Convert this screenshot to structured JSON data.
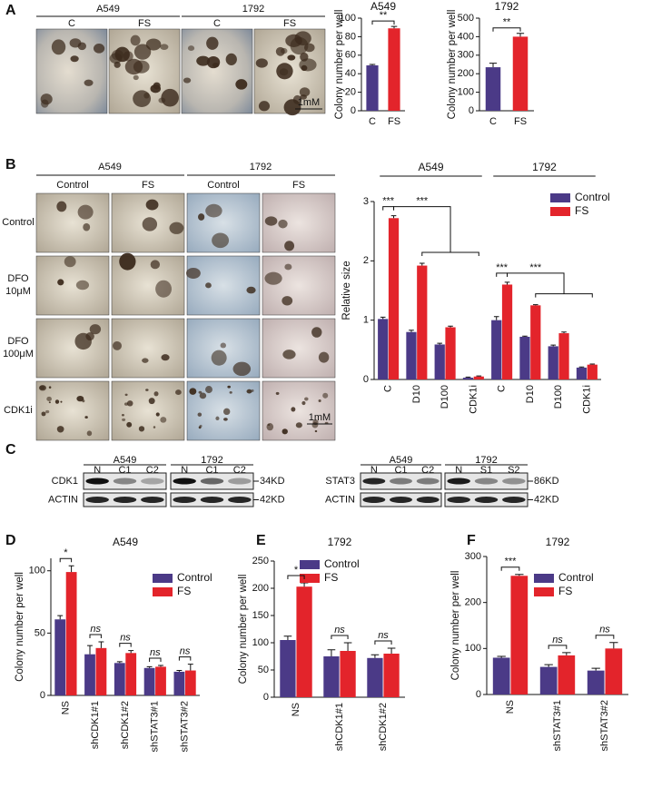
{
  "figure": {
    "panel_labels": [
      "A",
      "B",
      "C",
      "D",
      "E",
      "F"
    ],
    "a_images": {
      "groups": [
        "A549",
        "1792"
      ],
      "columns": [
        "C",
        "FS",
        "C",
        "FS"
      ],
      "scale": "1mM"
    },
    "b_images": {
      "groups": [
        "A549",
        "1792"
      ],
      "columns": [
        "Control",
        "FS",
        "Control",
        "FS"
      ],
      "rows": [
        [
          "Control"
        ],
        [
          "DFO",
          "10μM"
        ],
        [
          "DFO",
          "100μM"
        ],
        [
          "CDK1i"
        ]
      ],
      "scale": "1mM"
    },
    "c_blots": [
      {
        "groups": [
          "A549",
          "1792"
        ],
        "lanes": [
          [
            "N",
            "C1",
            "C2"
          ],
          [
            "N",
            "C1",
            "C2"
          ]
        ],
        "rows": [
          "CDK1",
          "ACTIN"
        ],
        "sizes": [
          "34KD",
          "42KD"
        ]
      },
      {
        "groups": [
          "A549",
          "1792"
        ],
        "lanes": [
          [
            "N",
            "C1",
            "C2"
          ],
          [
            "N",
            "S1",
            "S2"
          ]
        ],
        "rows": [
          "STAT3",
          "ACTIN"
        ],
        "sizes": [
          "86KD",
          "42KD"
        ]
      }
    ]
  },
  "chart_data": [
    {
      "type": "bar",
      "title": "A549",
      "ylabel": "Colony number per well",
      "categories": [
        "C",
        "FS"
      ],
      "values": [
        49,
        89
      ],
      "errors": [
        1,
        2
      ],
      "colors": [
        "#4b3a87",
        "#e3242b"
      ],
      "ylim": [
        0,
        100
      ],
      "yticks": [
        0,
        20,
        40,
        60,
        80,
        100
      ],
      "annotations": [
        "**"
      ]
    },
    {
      "type": "bar",
      "title": "1792",
      "ylabel": "Colony number per well",
      "categories": [
        "C",
        "FS"
      ],
      "values": [
        235,
        400
      ],
      "errors": [
        22,
        18
      ],
      "colors": [
        "#4b3a87",
        "#e3242b"
      ],
      "ylim": [
        0,
        500
      ],
      "yticks": [
        0,
        100,
        200,
        300,
        400,
        500
      ],
      "annotations": [
        "**"
      ]
    },
    {
      "type": "bar",
      "ylabel": "Relative size",
      "groups": [
        "A549",
        "1792"
      ],
      "categories": [
        "C",
        "D10",
        "D100",
        "CDK1i",
        "C",
        "D10",
        "D100",
        "CDK1i"
      ],
      "series": [
        {
          "name": "Control",
          "color": "#4b3a87",
          "values": [
            1.02,
            0.8,
            0.59,
            0.03,
            1.0,
            0.72,
            0.56,
            0.2
          ],
          "errors": [
            0.03,
            0.03,
            0.02,
            0.01,
            0.06,
            0.01,
            0.02,
            0.01
          ]
        },
        {
          "name": "FS",
          "color": "#e3242b",
          "values": [
            2.72,
            1.92,
            0.88,
            0.05,
            1.6,
            1.25,
            0.78,
            0.25
          ],
          "errors": [
            0.04,
            0.04,
            0.02,
            0.01,
            0.04,
            0.01,
            0.02,
            0.01
          ]
        }
      ],
      "ylim": [
        0,
        3
      ],
      "yticks": [
        0,
        1,
        2,
        3
      ],
      "annotations": [
        "***",
        "***",
        "***",
        "***"
      ],
      "legend": "upper right"
    },
    {
      "type": "bar",
      "title": "A549",
      "ylabel": "Colony number per well",
      "categories": [
        "NS",
        "shCDK1#1",
        "shCDK1#2",
        "shSTAT3#1",
        "shSTAT3#2"
      ],
      "series": [
        {
          "name": "Control",
          "color": "#4b3a87",
          "values": [
            61,
            33,
            26,
            22,
            19
          ],
          "errors": [
            3,
            7,
            1,
            1,
            1
          ]
        },
        {
          "name": "FS",
          "color": "#e3242b",
          "values": [
            99,
            38,
            34,
            23,
            20
          ],
          "errors": [
            5,
            5,
            2,
            1,
            5
          ]
        }
      ],
      "ylim": [
        0,
        110
      ],
      "yticks": [
        0,
        50,
        100
      ],
      "annotations": [
        "*",
        "ns",
        "ns",
        "ns",
        "ns"
      ],
      "legend": "upper right"
    },
    {
      "type": "bar",
      "title": "1792",
      "ylabel": "Colony number per well",
      "categories": [
        "NS",
        "shCDK1#1",
        "shCDK1#2"
      ],
      "series": [
        {
          "name": "Control",
          "color": "#4b3a87",
          "values": [
            105,
            75,
            72
          ],
          "errors": [
            7,
            12,
            6
          ]
        },
        {
          "name": "FS",
          "color": "#e3242b",
          "values": [
            203,
            85,
            80
          ],
          "errors": [
            7,
            15,
            10
          ]
        }
      ],
      "ylim": [
        0,
        250
      ],
      "yticks": [
        0,
        50,
        100,
        150,
        200,
        250
      ],
      "annotations": [
        "*",
        "ns",
        "ns"
      ],
      "legend": "upper left"
    },
    {
      "type": "bar",
      "title": "1792",
      "ylabel": "Colony number per well",
      "categories": [
        "NS",
        "shSTAT3#1",
        "shSTAT3#2"
      ],
      "series": [
        {
          "name": "Control",
          "color": "#4b3a87",
          "values": [
            80,
            60,
            52
          ],
          "errors": [
            3,
            5,
            5
          ]
        },
        {
          "name": "FS",
          "color": "#e3242b",
          "values": [
            258,
            85,
            100
          ],
          "errors": [
            3,
            6,
            13
          ]
        }
      ],
      "ylim": [
        0,
        300
      ],
      "yticks": [
        0,
        100,
        200,
        300
      ],
      "annotations": [
        "***",
        "ns",
        "ns"
      ],
      "legend": "upper right"
    }
  ]
}
